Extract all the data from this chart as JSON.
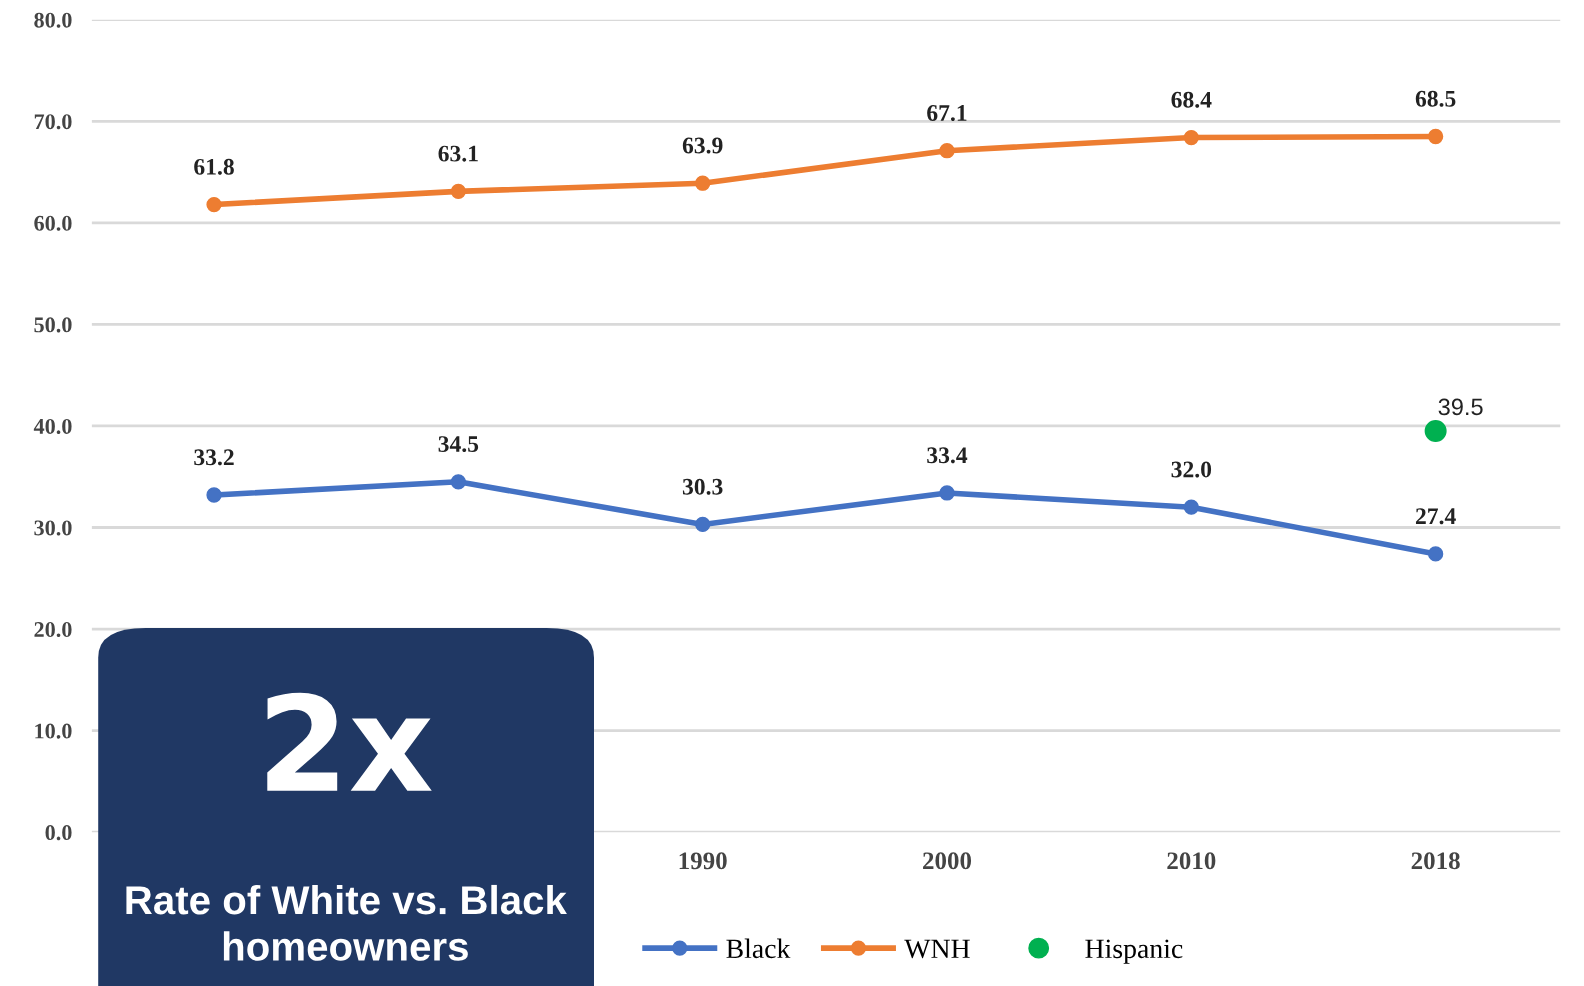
{
  "chart_data": {
    "type": "line",
    "categories": [
      null,
      null,
      "1990",
      "2000",
      "2010",
      "2018"
    ],
    "series": [
      {
        "name": "Black",
        "color": "#4472c4",
        "values": [
          33.2,
          34.5,
          30.3,
          33.4,
          32.0,
          27.4
        ],
        "value_labels": [
          "33.2",
          "34.5",
          "30.3",
          "33.4",
          "32.0",
          "27.4"
        ]
      },
      {
        "name": "WNH",
        "color": "#ed7d31",
        "values": [
          61.8,
          63.1,
          63.9,
          67.1,
          68.4,
          68.5
        ],
        "value_labels": [
          "61.8",
          "63.1",
          "63.9",
          "67.1",
          "68.4",
          "68.5"
        ]
      },
      {
        "name": "Hispanic",
        "type": "scatter",
        "color": "#00b050",
        "values": [
          null,
          null,
          null,
          null,
          null,
          39.5
        ],
        "value_labels": [
          null,
          null,
          null,
          null,
          null,
          "39.5"
        ]
      }
    ],
    "ylim": [
      0,
      80
    ],
    "yticks": [
      {
        "value": 0,
        "label": "0.0"
      },
      {
        "value": 10,
        "label": "10.0"
      },
      {
        "value": 20,
        "label": "20.0"
      },
      {
        "value": 30,
        "label": "30.0"
      },
      {
        "value": 40,
        "label": "40.0"
      },
      {
        "value": 50,
        "label": "50.0"
      },
      {
        "value": 60,
        "label": "60.0"
      },
      {
        "value": 70,
        "label": "70.0"
      },
      {
        "value": 80,
        "label": "80.0"
      }
    ],
    "grid": "y",
    "legend": "bottom",
    "marker": "circle",
    "line_style": "solid",
    "annotations": [
      "2x",
      "Rate of White vs. Black homeowners"
    ]
  }
}
